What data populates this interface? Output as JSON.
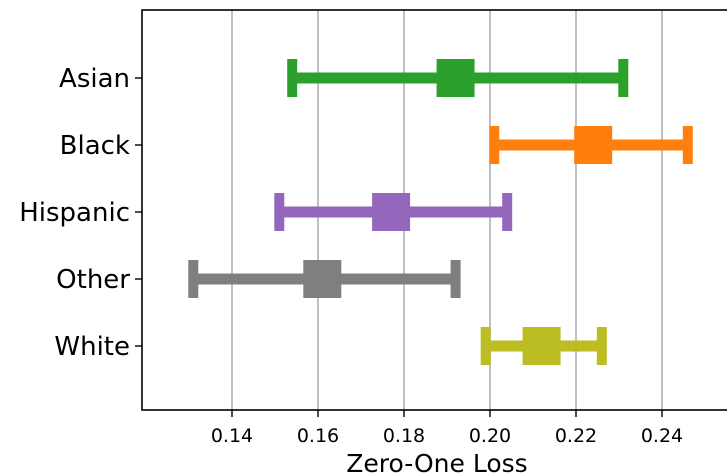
{
  "chart_data": {
    "type": "errorbar",
    "xlabel": "Zero-One Loss",
    "ylabel": "",
    "xlim": [
      0.12,
      0.25
    ],
    "xticks": [
      "0.14",
      "0.16",
      "0.18",
      "0.20",
      "0.22",
      "0.24"
    ],
    "grid": "vertical",
    "series": [
      {
        "name": "Asian",
        "value": 0.192,
        "low": 0.154,
        "high": 0.231,
        "color": "#2ca02c"
      },
      {
        "name": "Black",
        "value": 0.224,
        "low": 0.201,
        "high": 0.246,
        "color": "#ff7f0e"
      },
      {
        "name": "Hispanic",
        "value": 0.177,
        "low": 0.151,
        "high": 0.204,
        "color": "#9467bd"
      },
      {
        "name": "Other",
        "value": 0.161,
        "low": 0.131,
        "high": 0.192,
        "color": "#7f7f7f"
      },
      {
        "name": "White",
        "value": 0.212,
        "low": 0.199,
        "high": 0.226,
        "color": "#bcbd22"
      }
    ]
  }
}
